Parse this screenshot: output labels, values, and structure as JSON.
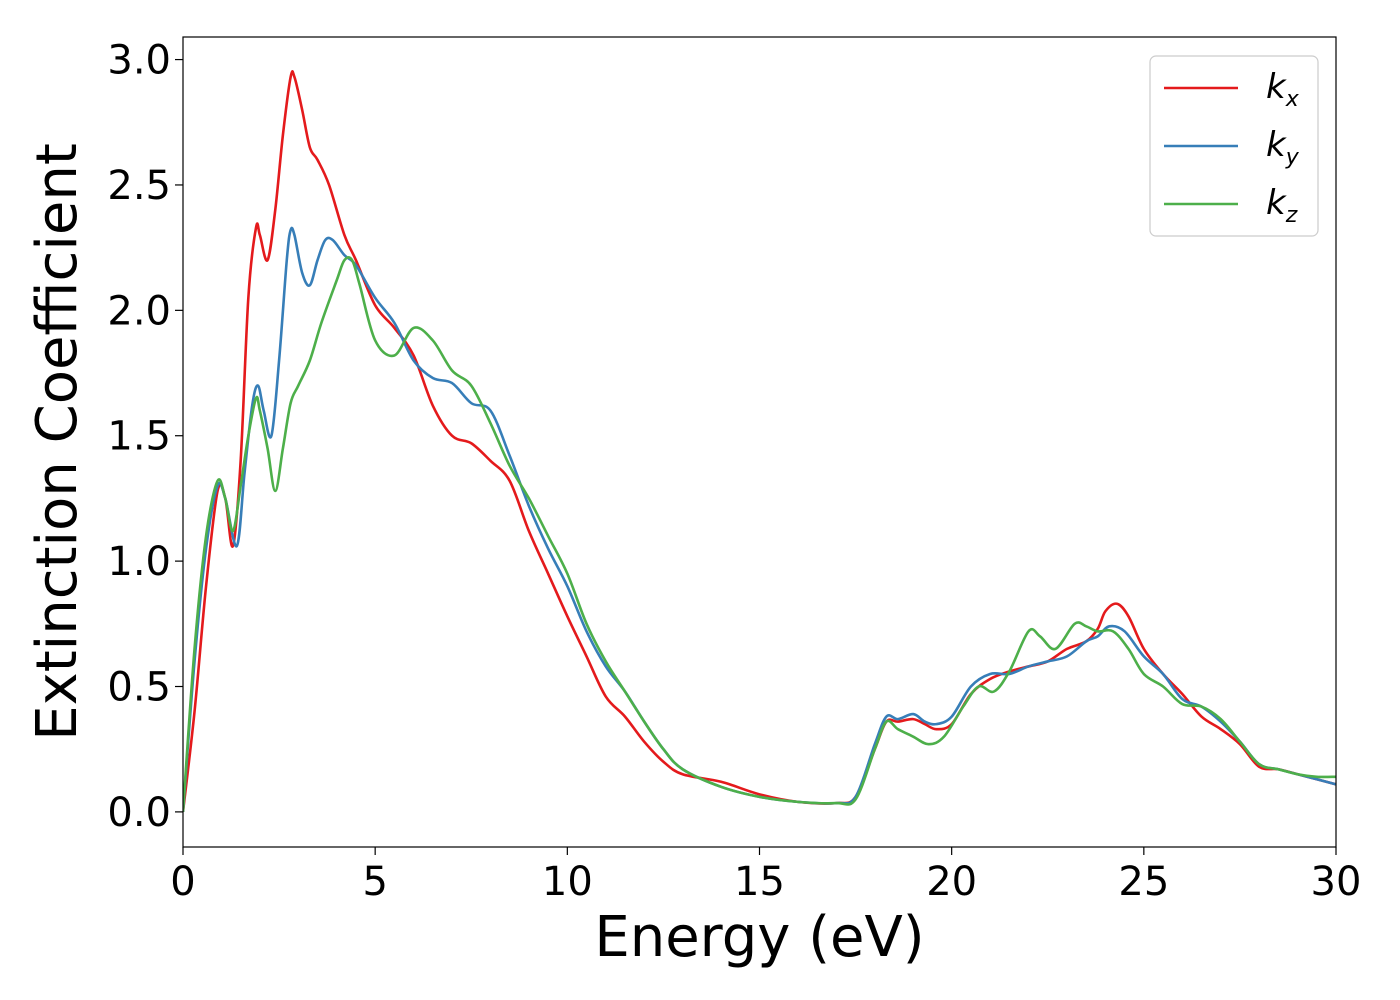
{
  "chart_data": {
    "type": "line",
    "title": "",
    "xlabel": "Energy (eV)",
    "ylabel": "Extinction Coefficient",
    "xlim": [
      0,
      30
    ],
    "ylim": [
      -0.14,
      3.09
    ],
    "xticks": [
      0,
      5,
      10,
      15,
      20,
      25,
      30
    ],
    "xtick_labels": [
      "0",
      "5",
      "10",
      "15",
      "20",
      "25",
      "30"
    ],
    "yticks": [
      0.0,
      0.5,
      1.0,
      1.5,
      2.0,
      2.5,
      3.0
    ],
    "ytick_labels": [
      "0.0",
      "0.5",
      "1.0",
      "1.5",
      "2.0",
      "2.5",
      "3.0"
    ],
    "grid": false,
    "legend": "top-right",
    "series": [
      {
        "name": "k_x",
        "label_main": "k",
        "label_sub": "x",
        "color": "#e41a1c",
        "x": [
          0,
          0.3,
          0.6,
          0.9,
          1.1,
          1.3,
          1.5,
          1.7,
          1.9,
          2.0,
          2.2,
          2.4,
          2.6,
          2.8,
          2.9,
          3.1,
          3.3,
          3.5,
          3.8,
          4.2,
          4.5,
          5.0,
          5.5,
          6.0,
          6.5,
          7.0,
          7.5,
          8.0,
          8.5,
          9.0,
          9.5,
          10.0,
          10.5,
          11.0,
          11.5,
          12.0,
          12.5,
          13.0,
          14.0,
          15.0,
          16.0,
          17.0,
          17.5,
          18.0,
          18.3,
          18.6,
          19.0,
          19.3,
          19.6,
          20.0,
          20.5,
          21.0,
          21.5,
          22.0,
          22.5,
          23.0,
          23.5,
          23.8,
          24.0,
          24.3,
          24.6,
          25.0,
          25.5,
          26.0,
          26.5,
          27.0,
          27.5,
          28.0,
          28.5,
          29.0,
          29.5,
          30.0
        ],
        "values": [
          0.0,
          0.4,
          0.9,
          1.28,
          1.25,
          1.06,
          1.4,
          2.05,
          2.33,
          2.3,
          2.2,
          2.4,
          2.7,
          2.93,
          2.93,
          2.8,
          2.65,
          2.6,
          2.5,
          2.3,
          2.2,
          2.02,
          1.93,
          1.82,
          1.62,
          1.5,
          1.47,
          1.4,
          1.32,
          1.12,
          0.95,
          0.78,
          0.62,
          0.46,
          0.38,
          0.28,
          0.2,
          0.15,
          0.12,
          0.07,
          0.04,
          0.035,
          0.06,
          0.25,
          0.36,
          0.36,
          0.37,
          0.35,
          0.33,
          0.35,
          0.47,
          0.53,
          0.56,
          0.58,
          0.6,
          0.65,
          0.68,
          0.73,
          0.8,
          0.83,
          0.78,
          0.65,
          0.55,
          0.47,
          0.38,
          0.33,
          0.27,
          0.18,
          0.17,
          0.15,
          0.13,
          0.11
        ]
      },
      {
        "name": "k_y",
        "label_main": "k",
        "label_sub": "y",
        "color": "#377eb8",
        "x": [
          0,
          0.3,
          0.6,
          0.9,
          1.1,
          1.4,
          1.6,
          1.8,
          1.95,
          2.1,
          2.3,
          2.5,
          2.7,
          2.8,
          2.9,
          3.1,
          3.3,
          3.5,
          3.7,
          3.9,
          4.2,
          4.5,
          5.0,
          5.5,
          6.0,
          6.5,
          7.0,
          7.5,
          8.0,
          8.5,
          9.0,
          9.5,
          10.0,
          10.5,
          11.0,
          11.5,
          12.0,
          12.5,
          13.0,
          14.0,
          15.0,
          16.0,
          17.0,
          17.5,
          18.0,
          18.3,
          18.6,
          19.0,
          19.3,
          19.6,
          20.0,
          20.5,
          21.0,
          21.5,
          22.0,
          22.5,
          23.0,
          23.5,
          23.8,
          24.1,
          24.5,
          25.0,
          25.5,
          26.0,
          26.5,
          27.0,
          27.5,
          28.0,
          28.5,
          29.0,
          29.5,
          30.0
        ],
        "values": [
          0.0,
          0.6,
          1.05,
          1.3,
          1.25,
          1.06,
          1.35,
          1.62,
          1.7,
          1.6,
          1.5,
          1.8,
          2.2,
          2.32,
          2.3,
          2.15,
          2.1,
          2.2,
          2.28,
          2.28,
          2.22,
          2.18,
          2.05,
          1.95,
          1.8,
          1.73,
          1.71,
          1.63,
          1.6,
          1.42,
          1.22,
          1.05,
          0.9,
          0.72,
          0.58,
          0.48,
          0.36,
          0.25,
          0.17,
          0.1,
          0.06,
          0.04,
          0.035,
          0.06,
          0.27,
          0.38,
          0.37,
          0.39,
          0.36,
          0.35,
          0.38,
          0.5,
          0.55,
          0.55,
          0.58,
          0.6,
          0.62,
          0.68,
          0.7,
          0.74,
          0.72,
          0.62,
          0.55,
          0.45,
          0.42,
          0.36,
          0.28,
          0.19,
          0.17,
          0.15,
          0.13,
          0.11
        ]
      },
      {
        "name": "k_z",
        "label_main": "k",
        "label_sub": "z",
        "color": "#4daf4a",
        "x": [
          0,
          0.3,
          0.6,
          0.9,
          1.1,
          1.3,
          1.5,
          1.7,
          1.9,
          2.0,
          2.2,
          2.4,
          2.6,
          2.8,
          3.0,
          3.3,
          3.6,
          4.0,
          4.2,
          4.4,
          4.6,
          5.0,
          5.5,
          6.0,
          6.5,
          7.0,
          7.5,
          8.0,
          8.5,
          9.0,
          9.5,
          10.0,
          10.5,
          11.0,
          11.5,
          12.0,
          12.5,
          13.0,
          14.0,
          15.0,
          16.0,
          17.0,
          17.5,
          18.0,
          18.3,
          18.6,
          19.0,
          19.4,
          19.8,
          20.3,
          20.7,
          21.1,
          21.5,
          22.0,
          22.3,
          22.7,
          23.2,
          23.5,
          23.8,
          24.2,
          24.6,
          25.0,
          25.5,
          26.0,
          26.5,
          27.0,
          27.5,
          28.0,
          28.5,
          29.0,
          29.5,
          30.0
        ],
        "values": [
          0.0,
          0.65,
          1.1,
          1.32,
          1.25,
          1.12,
          1.3,
          1.5,
          1.65,
          1.6,
          1.45,
          1.28,
          1.45,
          1.63,
          1.7,
          1.8,
          1.95,
          2.12,
          2.2,
          2.2,
          2.1,
          1.88,
          1.82,
          1.93,
          1.88,
          1.76,
          1.7,
          1.55,
          1.38,
          1.25,
          1.1,
          0.95,
          0.75,
          0.6,
          0.48,
          0.36,
          0.25,
          0.17,
          0.1,
          0.06,
          0.04,
          0.035,
          0.05,
          0.25,
          0.36,
          0.33,
          0.3,
          0.27,
          0.3,
          0.42,
          0.5,
          0.48,
          0.56,
          0.72,
          0.7,
          0.65,
          0.75,
          0.74,
          0.72,
          0.72,
          0.65,
          0.55,
          0.5,
          0.43,
          0.42,
          0.37,
          0.28,
          0.19,
          0.17,
          0.15,
          0.14,
          0.14
        ]
      }
    ]
  }
}
